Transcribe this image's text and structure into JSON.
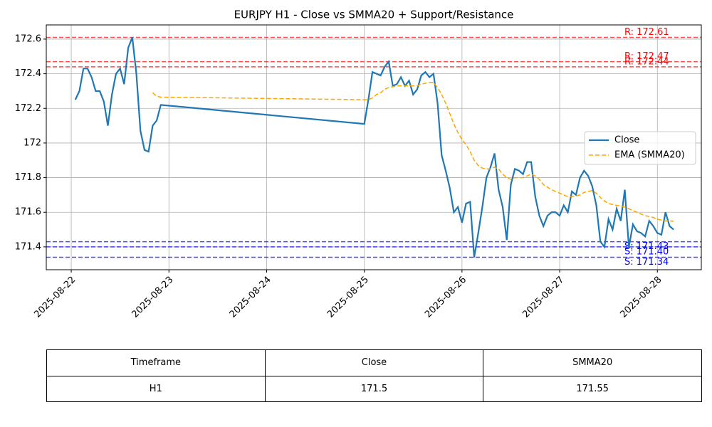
{
  "chart_data": {
    "type": "line",
    "title": "EURJPY H1 - Close vs SMMA20 + Support/Resistance",
    "x": [
      "2025-08-22 01:00",
      "2025-08-22 02:00",
      "2025-08-22 03:00",
      "2025-08-22 04:00",
      "2025-08-22 05:00",
      "2025-08-22 06:00",
      "2025-08-22 07:00",
      "2025-08-22 08:00",
      "2025-08-22 09:00",
      "2025-08-22 10:00",
      "2025-08-22 11:00",
      "2025-08-22 12:00",
      "2025-08-22 13:00",
      "2025-08-22 14:00",
      "2025-08-22 15:00",
      "2025-08-22 16:00",
      "2025-08-22 17:00",
      "2025-08-22 18:00",
      "2025-08-22 19:00",
      "2025-08-22 20:00",
      "2025-08-22 21:00",
      "2025-08-22 22:00",
      "2025-08-25 00:00",
      "2025-08-25 01:00",
      "2025-08-25 02:00",
      "2025-08-25 03:00",
      "2025-08-25 04:00",
      "2025-08-25 05:00",
      "2025-08-25 06:00",
      "2025-08-25 07:00",
      "2025-08-25 08:00",
      "2025-08-25 09:00",
      "2025-08-25 10:00",
      "2025-08-25 11:00",
      "2025-08-25 12:00",
      "2025-08-25 13:00",
      "2025-08-25 14:00",
      "2025-08-25 15:00",
      "2025-08-25 16:00",
      "2025-08-25 17:00",
      "2025-08-25 18:00",
      "2025-08-25 19:00",
      "2025-08-25 20:00",
      "2025-08-25 21:00",
      "2025-08-25 22:00",
      "2025-08-25 23:00",
      "2025-08-26 00:00",
      "2025-08-26 01:00",
      "2025-08-26 02:00",
      "2025-08-26 03:00",
      "2025-08-26 04:00",
      "2025-08-26 05:00",
      "2025-08-26 06:00",
      "2025-08-26 07:00",
      "2025-08-26 08:00",
      "2025-08-26 09:00",
      "2025-08-26 10:00",
      "2025-08-26 11:00",
      "2025-08-26 12:00",
      "2025-08-26 13:00",
      "2025-08-26 14:00",
      "2025-08-26 15:00",
      "2025-08-26 16:00",
      "2025-08-26 17:00",
      "2025-08-26 18:00",
      "2025-08-26 19:00",
      "2025-08-26 20:00",
      "2025-08-26 21:00",
      "2025-08-26 22:00",
      "2025-08-26 23:00",
      "2025-08-27 00:00",
      "2025-08-27 01:00",
      "2025-08-27 02:00",
      "2025-08-27 03:00",
      "2025-08-27 04:00",
      "2025-08-27 05:00",
      "2025-08-27 06:00",
      "2025-08-27 07:00",
      "2025-08-27 08:00",
      "2025-08-27 09:00",
      "2025-08-27 10:00",
      "2025-08-27 11:00",
      "2025-08-27 12:00",
      "2025-08-27 13:00",
      "2025-08-27 14:00",
      "2025-08-27 15:00",
      "2025-08-27 16:00",
      "2025-08-27 17:00",
      "2025-08-27 18:00",
      "2025-08-27 19:00",
      "2025-08-27 20:00",
      "2025-08-27 21:00",
      "2025-08-27 22:00",
      "2025-08-27 23:00",
      "2025-08-28 00:00",
      "2025-08-28 01:00",
      "2025-08-28 02:00",
      "2025-08-28 03:00",
      "2025-08-28 04:00"
    ],
    "series": [
      {
        "name": "Close",
        "color": "#1f77b4",
        "dashed": false,
        "values": [
          172.25,
          172.3,
          172.43,
          172.43,
          172.38,
          172.3,
          172.3,
          172.24,
          172.1,
          172.28,
          172.4,
          172.43,
          172.34,
          172.55,
          172.61,
          172.4,
          172.07,
          171.96,
          171.95,
          172.1,
          172.13,
          172.22,
          172.11,
          172.25,
          172.41,
          172.4,
          172.39,
          172.44,
          172.47,
          172.33,
          172.34,
          172.38,
          172.33,
          172.36,
          172.28,
          172.31,
          172.39,
          172.41,
          172.38,
          172.4,
          172.23,
          171.93,
          171.84,
          171.74,
          171.6,
          171.63,
          171.54,
          171.65,
          171.66,
          171.34,
          171.48,
          171.63,
          171.8,
          171.86,
          171.94,
          171.73,
          171.63,
          171.44,
          171.76,
          171.85,
          171.84,
          171.82,
          171.89,
          171.89,
          171.69,
          171.58,
          171.52,
          171.58,
          171.6,
          171.6,
          171.58,
          171.64,
          171.6,
          171.72,
          171.7,
          171.8,
          171.84,
          171.81,
          171.75,
          171.64,
          171.43,
          171.4,
          171.56,
          171.5,
          171.62,
          171.55,
          171.73,
          171.4,
          171.53,
          171.49,
          171.48,
          171.46,
          171.55,
          171.52,
          171.48,
          171.47,
          171.6,
          171.52,
          171.5
        ]
      },
      {
        "name": "EMA (SMMA20)",
        "color": "#ffa500",
        "dashed": true,
        "values": [
          null,
          null,
          null,
          null,
          null,
          null,
          null,
          null,
          null,
          null,
          null,
          null,
          null,
          null,
          null,
          null,
          null,
          null,
          null,
          172.29,
          172.27,
          172.265,
          172.25,
          172.25,
          172.26,
          172.28,
          172.29,
          172.31,
          172.32,
          172.325,
          172.33,
          172.33,
          172.33,
          172.33,
          172.33,
          172.33,
          172.34,
          172.345,
          172.35,
          172.35,
          172.32,
          172.28,
          172.23,
          172.17,
          172.11,
          172.06,
          172.02,
          171.99,
          171.95,
          171.9,
          171.87,
          171.855,
          171.85,
          171.85,
          171.86,
          171.85,
          171.82,
          171.8,
          171.79,
          171.8,
          171.8,
          171.8,
          171.81,
          171.82,
          171.81,
          171.79,
          171.76,
          171.745,
          171.73,
          171.72,
          171.71,
          171.7,
          171.69,
          171.69,
          171.695,
          171.7,
          171.715,
          171.72,
          171.725,
          171.71,
          171.685,
          171.665,
          171.65,
          171.645,
          171.64,
          171.635,
          171.63,
          171.62,
          171.61,
          171.6,
          171.59,
          171.58,
          171.575,
          171.57,
          171.56,
          171.555,
          171.55,
          171.55,
          171.548
        ]
      }
    ],
    "levels": [
      {
        "value": 172.61,
        "label": "R: 172.61",
        "color": "#ff0000"
      },
      {
        "value": 172.47,
        "label": "R: 172.47",
        "color": "#ff0000"
      },
      {
        "value": 172.44,
        "label": "R: 172.44",
        "color": "#ff0000"
      },
      {
        "value": 171.43,
        "label": "S: 171.43",
        "color": "#0000ff"
      },
      {
        "value": 171.4,
        "label": "S: 171.40",
        "color": "#0000ff"
      },
      {
        "value": 171.34,
        "label": "S: 171.34",
        "color": "#0000ff"
      }
    ],
    "xlim": [
      "2025-08-21 17:52",
      "2025-08-28 10:48"
    ],
    "xticks": [
      "2025-08-22",
      "2025-08-23",
      "2025-08-24",
      "2025-08-25",
      "2025-08-26",
      "2025-08-27",
      "2025-08-28"
    ],
    "ylim": [
      171.268,
      172.682
    ],
    "yticks": [
      171.4,
      171.6,
      171.8,
      172.0,
      172.2,
      172.4,
      172.6
    ],
    "grid": true,
    "legend": "center right"
  },
  "table": {
    "headers": [
      "Timeframe",
      "Close",
      "SMMA20"
    ],
    "rows": [
      [
        "H1",
        171.5,
        171.55
      ]
    ]
  }
}
